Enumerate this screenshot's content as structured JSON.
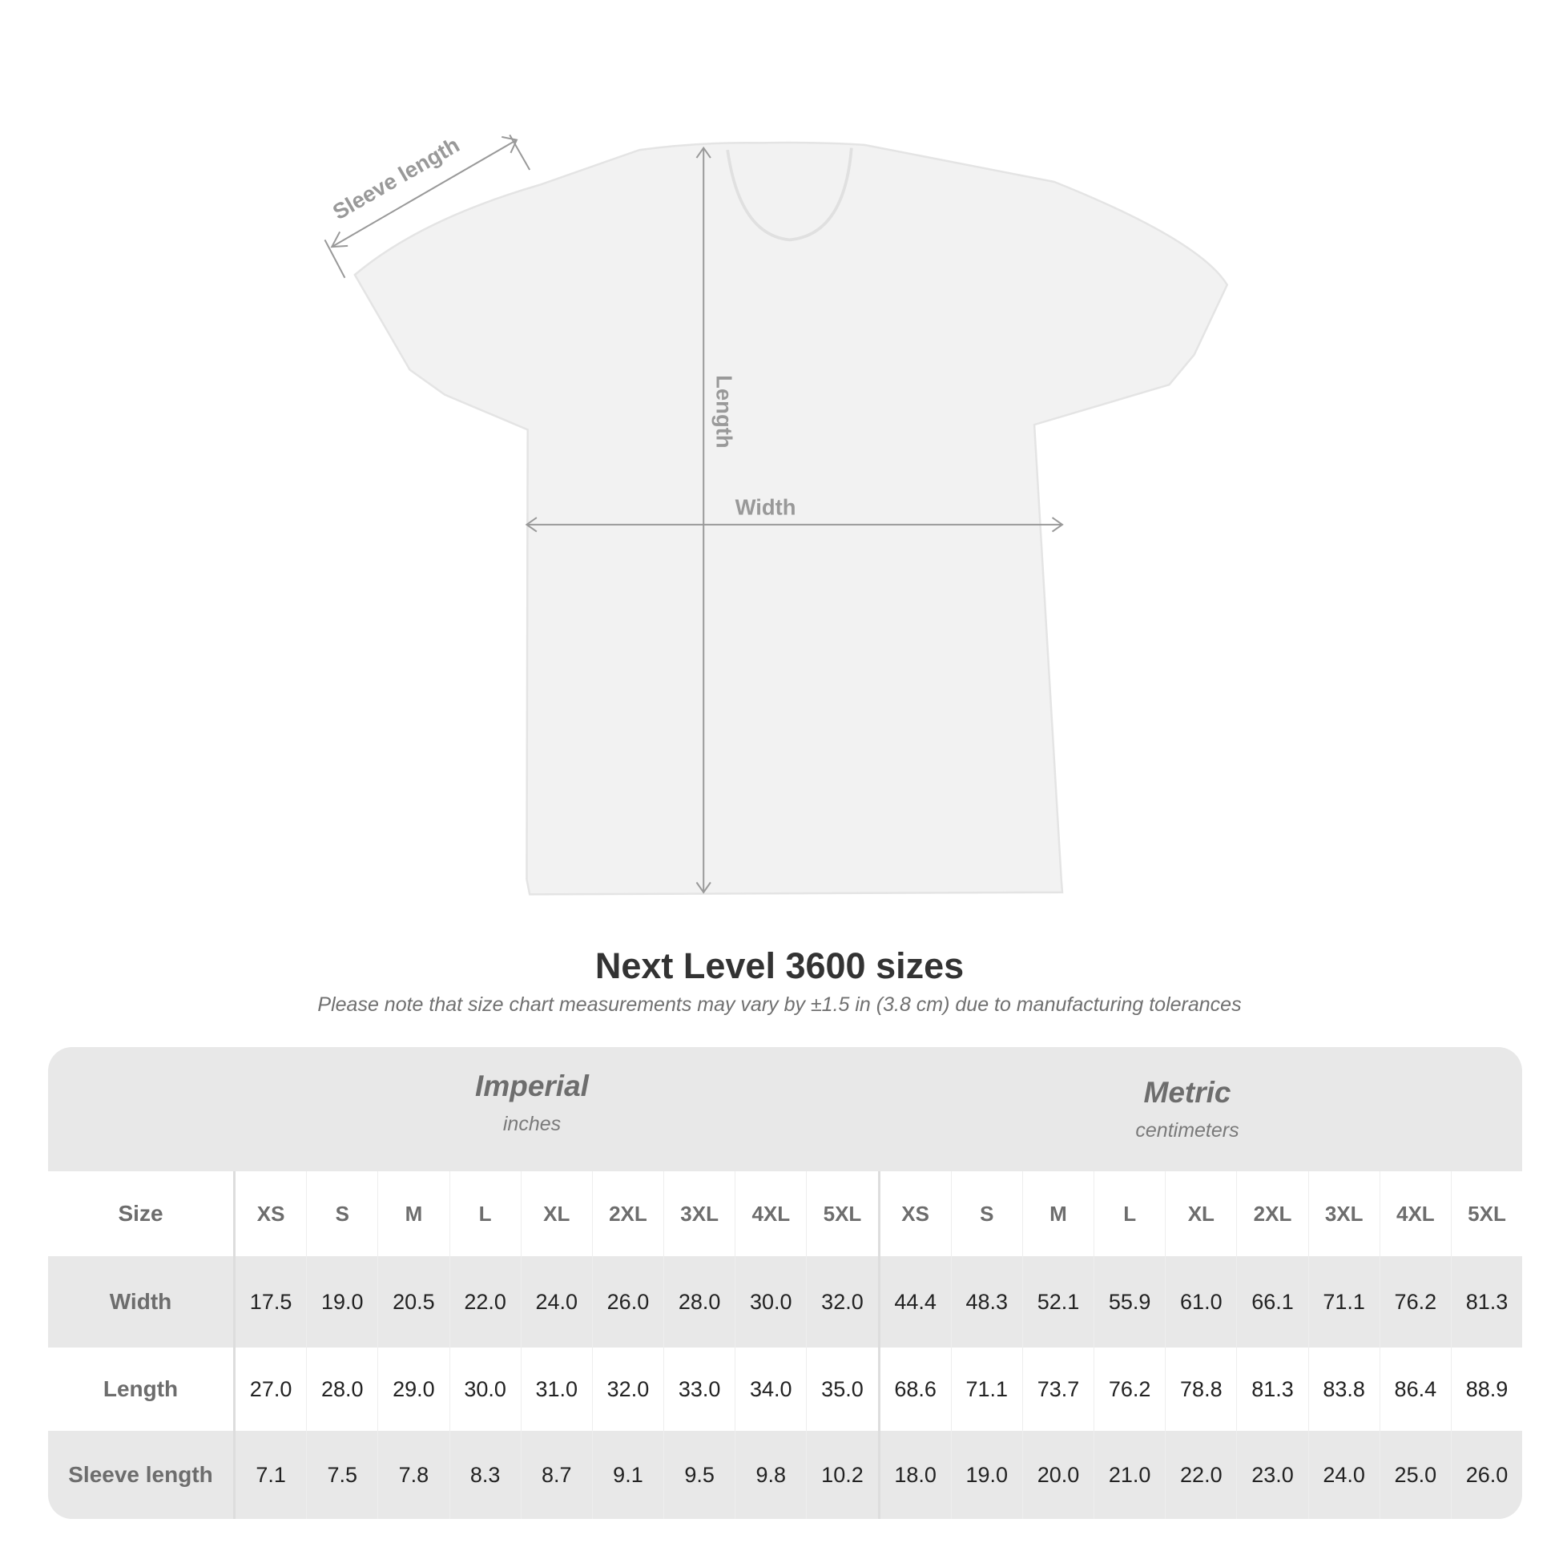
{
  "diagram": {
    "sleeve_label": "Sleeve length",
    "length_label": "Length",
    "width_label": "Width",
    "line_color": "#999999",
    "shirt_color": "#f2f2f2"
  },
  "title": "Next Level 3600 sizes",
  "subtitle": "Please note that size chart measurements may vary by ±1.5 in (3.8 cm) due to manufacturing tolerances",
  "table": {
    "imperial": {
      "name": "Imperial",
      "unit": "inches"
    },
    "metric": {
      "name": "Metric",
      "unit": "centimeters"
    },
    "rows": [
      {
        "label": "Size",
        "imperial": [
          "XS",
          "S",
          "M",
          "L",
          "XL",
          "2XL",
          "3XL",
          "4XL",
          "5XL"
        ],
        "metric": [
          "XS",
          "S",
          "M",
          "L",
          "XL",
          "2XL",
          "3XL",
          "4XL",
          "5XL"
        ]
      },
      {
        "label": "Width",
        "imperial": [
          "17.5",
          "19.0",
          "20.5",
          "22.0",
          "24.0",
          "26.0",
          "28.0",
          "30.0",
          "32.0"
        ],
        "metric": [
          "44.4",
          "48.3",
          "52.1",
          "55.9",
          "61.0",
          "66.1",
          "71.1",
          "76.2",
          "81.3"
        ]
      },
      {
        "label": "Length",
        "imperial": [
          "27.0",
          "28.0",
          "29.0",
          "30.0",
          "31.0",
          "32.0",
          "33.0",
          "34.0",
          "35.0"
        ],
        "metric": [
          "68.6",
          "71.1",
          "73.7",
          "76.2",
          "78.8",
          "81.3",
          "83.8",
          "86.4",
          "88.9"
        ]
      },
      {
        "label": "Sleeve length",
        "imperial": [
          "7.1",
          "7.5",
          "7.8",
          "8.3",
          "8.7",
          "9.1",
          "9.5",
          "9.8",
          "10.2"
        ],
        "metric": [
          "18.0",
          "19.0",
          "20.0",
          "21.0",
          "22.0",
          "23.0",
          "24.0",
          "25.0",
          "26.0"
        ]
      }
    ]
  }
}
